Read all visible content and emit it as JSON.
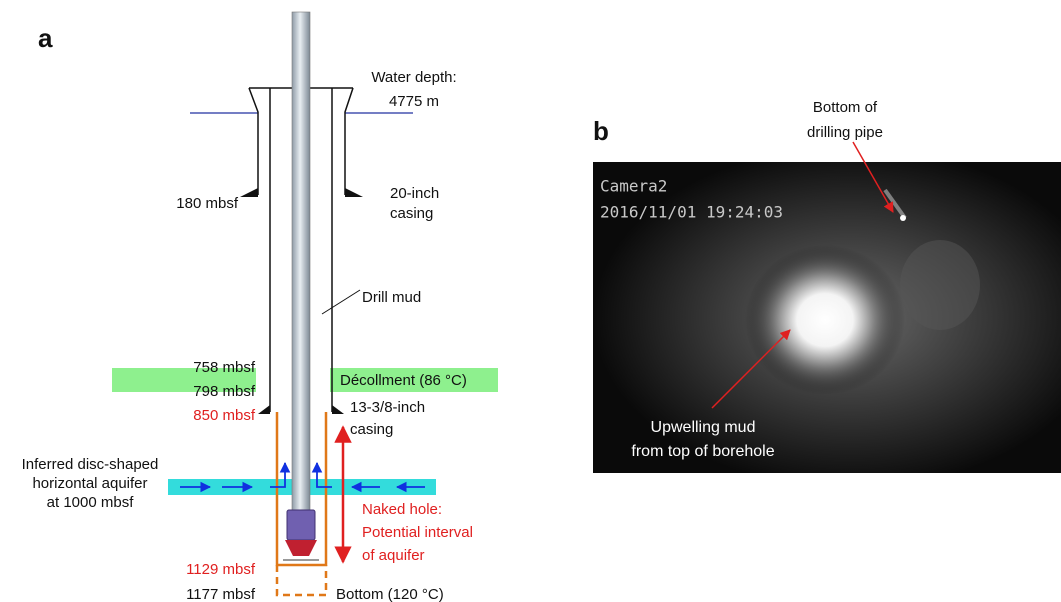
{
  "panel_a": {
    "label": "a",
    "water_depth": [
      "Water depth:",
      "4775 m"
    ],
    "depth_180": "180 mbsf",
    "casing_20": [
      "20-inch",
      "casing"
    ],
    "drill_mud": "Drill mud",
    "depth_758": "758 mbsf",
    "depth_798": "798 mbsf",
    "depth_850": "850 mbsf",
    "decollement": "Décollment (86 °C)",
    "casing_13": [
      "13-3/8-inch",
      "casing"
    ],
    "aquifer": [
      "Inferred disc-shaped",
      "horizontal aquifer",
      "at 1000 mbsf"
    ],
    "naked_hole": [
      "Naked hole:",
      "Potential interval",
      "of aquifer"
    ],
    "depth_1129": "1129 mbsf",
    "depth_1177": "1177 mbsf",
    "bottom": "Bottom (120 °C)"
  },
  "panel_b": {
    "label": "b",
    "pipe_note": [
      "Bottom of",
      "drilling pipe"
    ],
    "camera": "Camera2",
    "timestamp": "2016/11/01 19:24:03",
    "mud_note": [
      "Upwelling mud",
      "from top of borehole"
    ]
  }
}
